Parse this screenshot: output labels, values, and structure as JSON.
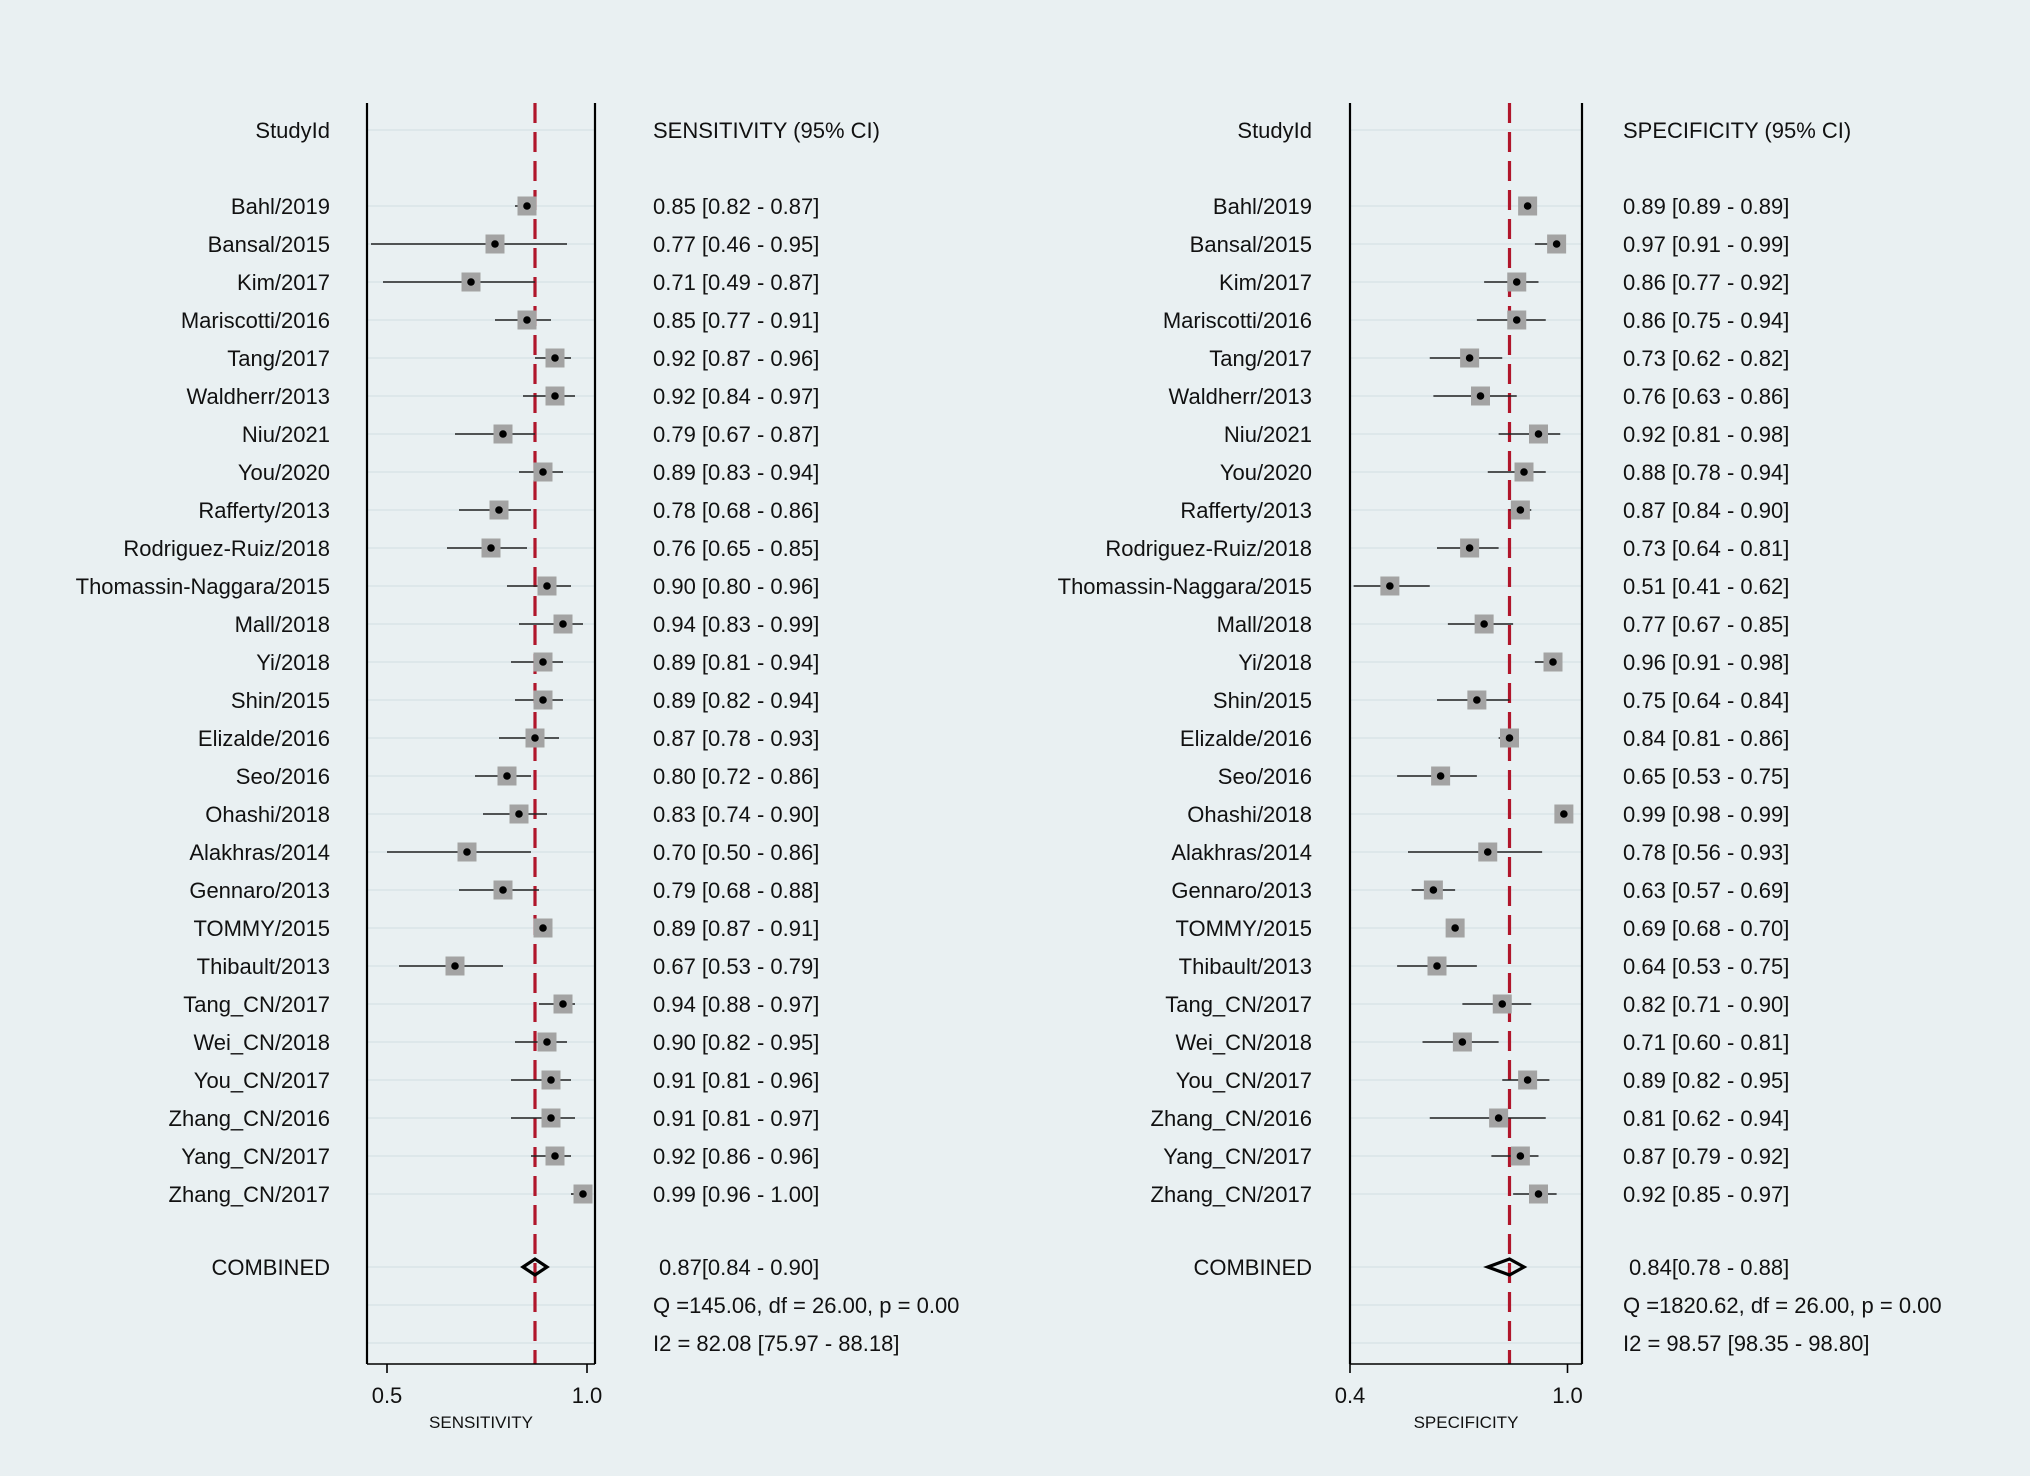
{
  "colors": {
    "background": "#e9f0f2",
    "reference_line": "#b0162b",
    "marker_box": "#a3a3a3",
    "point": "#000000",
    "gridline": "#dde7ea"
  },
  "chart_data": [
    {
      "type": "forest",
      "id": "sensitivity",
      "study_header": "StudyId",
      "estimate_header": "SENSITIVITY (95% CI)",
      "xlabel": "SENSITIVITY",
      "xlim": [
        0.45,
        1.02
      ],
      "xticks": [
        0.5,
        1.0
      ],
      "xtick_labels": [
        "0.5",
        "1.0"
      ],
      "reference_value": 0.87,
      "studies": [
        {
          "study": "Bahl/2019",
          "est": 0.85,
          "lo": 0.82,
          "hi": 0.87,
          "label": "0.85 [0.82 - 0.87]"
        },
        {
          "study": "Bansal/2015",
          "est": 0.77,
          "lo": 0.46,
          "hi": 0.95,
          "label": "0.77 [0.46 - 0.95]"
        },
        {
          "study": "Kim/2017",
          "est": 0.71,
          "lo": 0.49,
          "hi": 0.87,
          "label": "0.71 [0.49 - 0.87]"
        },
        {
          "study": "Mariscotti/2016",
          "est": 0.85,
          "lo": 0.77,
          "hi": 0.91,
          "label": "0.85 [0.77 - 0.91]"
        },
        {
          "study": "Tang/2017",
          "est": 0.92,
          "lo": 0.87,
          "hi": 0.96,
          "label": "0.92 [0.87 - 0.96]"
        },
        {
          "study": "Waldherr/2013",
          "est": 0.92,
          "lo": 0.84,
          "hi": 0.97,
          "label": "0.92 [0.84 - 0.97]"
        },
        {
          "study": "Niu/2021",
          "est": 0.79,
          "lo": 0.67,
          "hi": 0.87,
          "label": "0.79 [0.67 - 0.87]"
        },
        {
          "study": "You/2020",
          "est": 0.89,
          "lo": 0.83,
          "hi": 0.94,
          "label": "0.89 [0.83 - 0.94]"
        },
        {
          "study": "Rafferty/2013",
          "est": 0.78,
          "lo": 0.68,
          "hi": 0.86,
          "label": "0.78 [0.68 - 0.86]"
        },
        {
          "study": "Rodriguez-Ruiz/2018",
          "est": 0.76,
          "lo": 0.65,
          "hi": 0.85,
          "label": "0.76 [0.65 - 0.85]"
        },
        {
          "study": "Thomassin-Naggara/2015",
          "est": 0.9,
          "lo": 0.8,
          "hi": 0.96,
          "label": "0.90 [0.80 - 0.96]"
        },
        {
          "study": "Mall/2018",
          "est": 0.94,
          "lo": 0.83,
          "hi": 0.99,
          "label": "0.94 [0.83 - 0.99]"
        },
        {
          "study": "Yi/2018",
          "est": 0.89,
          "lo": 0.81,
          "hi": 0.94,
          "label": "0.89 [0.81 - 0.94]"
        },
        {
          "study": "Shin/2015",
          "est": 0.89,
          "lo": 0.82,
          "hi": 0.94,
          "label": "0.89 [0.82 - 0.94]"
        },
        {
          "study": "Elizalde/2016",
          "est": 0.87,
          "lo": 0.78,
          "hi": 0.93,
          "label": "0.87 [0.78 - 0.93]"
        },
        {
          "study": "Seo/2016",
          "est": 0.8,
          "lo": 0.72,
          "hi": 0.86,
          "label": "0.80 [0.72 - 0.86]"
        },
        {
          "study": "Ohashi/2018",
          "est": 0.83,
          "lo": 0.74,
          "hi": 0.9,
          "label": "0.83 [0.74 - 0.90]"
        },
        {
          "study": "Alakhras/2014",
          "est": 0.7,
          "lo": 0.5,
          "hi": 0.86,
          "label": "0.70 [0.50 - 0.86]"
        },
        {
          "study": "Gennaro/2013",
          "est": 0.79,
          "lo": 0.68,
          "hi": 0.88,
          "label": "0.79 [0.68 - 0.88]"
        },
        {
          "study": "TOMMY/2015",
          "est": 0.89,
          "lo": 0.87,
          "hi": 0.91,
          "label": "0.89 [0.87 - 0.91]"
        },
        {
          "study": "Thibault/2013",
          "est": 0.67,
          "lo": 0.53,
          "hi": 0.79,
          "label": "0.67 [0.53 - 0.79]"
        },
        {
          "study": "Tang_CN/2017",
          "est": 0.94,
          "lo": 0.88,
          "hi": 0.97,
          "label": "0.94 [0.88 - 0.97]"
        },
        {
          "study": "Wei_CN/2018",
          "est": 0.9,
          "lo": 0.82,
          "hi": 0.95,
          "label": "0.90 [0.82 - 0.95]"
        },
        {
          "study": "You_CN/2017",
          "est": 0.91,
          "lo": 0.81,
          "hi": 0.96,
          "label": "0.91 [0.81 - 0.96]"
        },
        {
          "study": "Zhang_CN/2016",
          "est": 0.91,
          "lo": 0.81,
          "hi": 0.97,
          "label": "0.91 [0.81 - 0.97]"
        },
        {
          "study": "Yang_CN/2017",
          "est": 0.92,
          "lo": 0.86,
          "hi": 0.96,
          "label": "0.92 [0.86 - 0.96]"
        },
        {
          "study": "Zhang_CN/2017",
          "est": 0.99,
          "lo": 0.96,
          "hi": 1.0,
          "label": "0.99 [0.96 - 1.00]"
        }
      ],
      "combined": {
        "label": "COMBINED",
        "est": 0.87,
        "lo": 0.84,
        "hi": 0.9,
        "text": "0.87[0.84 - 0.90]"
      },
      "heterogeneity": [
        "Q =145.06, df = 26.00, p =  0.00",
        "I2 = 82.08 [75.97 - 88.18]"
      ]
    },
    {
      "type": "forest",
      "id": "specificity",
      "study_header": "StudyId",
      "estimate_header": "SPECIFICITY (95% CI)",
      "xlabel": "SPECIFICITY",
      "xlim": [
        0.4,
        1.04
      ],
      "xticks": [
        0.4,
        1.0
      ],
      "xtick_labels": [
        "0.4",
        "1.0"
      ],
      "reference_value": 0.84,
      "studies": [
        {
          "study": "Bahl/2019",
          "est": 0.89,
          "lo": 0.89,
          "hi": 0.89,
          "label": "0.89 [0.89 - 0.89]"
        },
        {
          "study": "Bansal/2015",
          "est": 0.97,
          "lo": 0.91,
          "hi": 0.99,
          "label": "0.97 [0.91 - 0.99]"
        },
        {
          "study": "Kim/2017",
          "est": 0.86,
          "lo": 0.77,
          "hi": 0.92,
          "label": "0.86 [0.77 - 0.92]"
        },
        {
          "study": "Mariscotti/2016",
          "est": 0.86,
          "lo": 0.75,
          "hi": 0.94,
          "label": "0.86 [0.75 - 0.94]"
        },
        {
          "study": "Tang/2017",
          "est": 0.73,
          "lo": 0.62,
          "hi": 0.82,
          "label": "0.73 [0.62 - 0.82]"
        },
        {
          "study": "Waldherr/2013",
          "est": 0.76,
          "lo": 0.63,
          "hi": 0.86,
          "label": "0.76 [0.63 - 0.86]"
        },
        {
          "study": "Niu/2021",
          "est": 0.92,
          "lo": 0.81,
          "hi": 0.98,
          "label": "0.92 [0.81 - 0.98]"
        },
        {
          "study": "You/2020",
          "est": 0.88,
          "lo": 0.78,
          "hi": 0.94,
          "label": "0.88 [0.78 - 0.94]"
        },
        {
          "study": "Rafferty/2013",
          "est": 0.87,
          "lo": 0.84,
          "hi": 0.9,
          "label": "0.87 [0.84 - 0.90]"
        },
        {
          "study": "Rodriguez-Ruiz/2018",
          "est": 0.73,
          "lo": 0.64,
          "hi": 0.81,
          "label": "0.73 [0.64 - 0.81]"
        },
        {
          "study": "Thomassin-Naggara/2015",
          "est": 0.51,
          "lo": 0.41,
          "hi": 0.62,
          "label": "0.51 [0.41 - 0.62]"
        },
        {
          "study": "Mall/2018",
          "est": 0.77,
          "lo": 0.67,
          "hi": 0.85,
          "label": "0.77 [0.67 - 0.85]"
        },
        {
          "study": "Yi/2018",
          "est": 0.96,
          "lo": 0.91,
          "hi": 0.98,
          "label": "0.96 [0.91 - 0.98]"
        },
        {
          "study": "Shin/2015",
          "est": 0.75,
          "lo": 0.64,
          "hi": 0.84,
          "label": "0.75 [0.64 - 0.84]"
        },
        {
          "study": "Elizalde/2016",
          "est": 0.84,
          "lo": 0.81,
          "hi": 0.86,
          "label": "0.84 [0.81 - 0.86]"
        },
        {
          "study": "Seo/2016",
          "est": 0.65,
          "lo": 0.53,
          "hi": 0.75,
          "label": "0.65 [0.53 - 0.75]"
        },
        {
          "study": "Ohashi/2018",
          "est": 0.99,
          "lo": 0.98,
          "hi": 0.99,
          "label": "0.99 [0.98 - 0.99]"
        },
        {
          "study": "Alakhras/2014",
          "est": 0.78,
          "lo": 0.56,
          "hi": 0.93,
          "label": "0.78 [0.56 - 0.93]"
        },
        {
          "study": "Gennaro/2013",
          "est": 0.63,
          "lo": 0.57,
          "hi": 0.69,
          "label": "0.63 [0.57 - 0.69]"
        },
        {
          "study": "TOMMY/2015",
          "est": 0.69,
          "lo": 0.68,
          "hi": 0.7,
          "label": "0.69 [0.68 - 0.70]"
        },
        {
          "study": "Thibault/2013",
          "est": 0.64,
          "lo": 0.53,
          "hi": 0.75,
          "label": "0.64 [0.53 - 0.75]"
        },
        {
          "study": "Tang_CN/2017",
          "est": 0.82,
          "lo": 0.71,
          "hi": 0.9,
          "label": "0.82 [0.71 - 0.90]"
        },
        {
          "study": "Wei_CN/2018",
          "est": 0.71,
          "lo": 0.6,
          "hi": 0.81,
          "label": "0.71 [0.60 - 0.81]"
        },
        {
          "study": "You_CN/2017",
          "est": 0.89,
          "lo": 0.82,
          "hi": 0.95,
          "label": "0.89 [0.82 - 0.95]"
        },
        {
          "study": "Zhang_CN/2016",
          "est": 0.81,
          "lo": 0.62,
          "hi": 0.94,
          "label": "0.81 [0.62 - 0.94]"
        },
        {
          "study": "Yang_CN/2017",
          "est": 0.87,
          "lo": 0.79,
          "hi": 0.92,
          "label": "0.87 [0.79 - 0.92]"
        },
        {
          "study": "Zhang_CN/2017",
          "est": 0.92,
          "lo": 0.85,
          "hi": 0.97,
          "label": "0.92 [0.85 - 0.97]"
        }
      ],
      "combined": {
        "label": "COMBINED",
        "est": 0.84,
        "lo": 0.78,
        "hi": 0.88,
        "text": "0.84[0.78 - 0.88]"
      },
      "heterogeneity": [
        "Q =1820.62, df = 26.00, p =  0.00",
        "I2 = 98.57 [98.35 - 98.80]"
      ]
    }
  ]
}
